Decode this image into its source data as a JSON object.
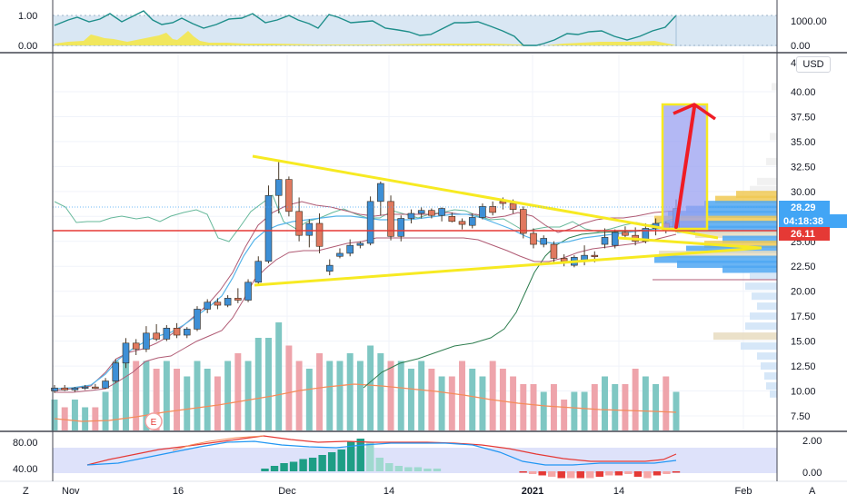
{
  "chart_data": {
    "type": "candlestick",
    "currency": "USD",
    "price_axis": {
      "ticks": [
        "40.00",
        "37.50",
        "35.00",
        "32.50",
        "30.00",
        "27.50",
        "25.00",
        "22.50",
        "20.00",
        "17.50",
        "15.00",
        "12.50",
        "10.00",
        "7.50"
      ],
      "top_partial": "4"
    },
    "time_axis": [
      "Nov",
      "16",
      "Dec",
      "14",
      "2021",
      "14",
      "Feb"
    ],
    "top_pane": {
      "left_ticks": [
        "1.00",
        "0.00"
      ],
      "right_ticks": [
        "1000.00",
        "0.00"
      ]
    },
    "bottom_pane": {
      "left_ticks": [
        "80.00",
        "40.00"
      ],
      "right_ticks": [
        "2.00",
        "0.00"
      ]
    },
    "badges": {
      "current_price": "28.29",
      "countdown": "04:18:38",
      "line_price": "26.11"
    },
    "earnings_marker": "E",
    "corner_left": "Z",
    "corner_right": "A",
    "candles": [
      {
        "o": 10.0,
        "h": 10.6,
        "l": 9.8,
        "c": 10.3
      },
      {
        "o": 10.3,
        "h": 10.6,
        "l": 10.0,
        "c": 10.1
      },
      {
        "o": 10.1,
        "h": 10.4,
        "l": 9.9,
        "c": 10.3
      },
      {
        "o": 10.3,
        "h": 10.6,
        "l": 10.1,
        "c": 10.4
      },
      {
        "o": 10.4,
        "h": 10.7,
        "l": 10.2,
        "c": 10.3
      },
      {
        "o": 10.3,
        "h": 11.3,
        "l": 10.2,
        "c": 11.0
      },
      {
        "o": 11.0,
        "h": 13.2,
        "l": 10.8,
        "c": 12.8
      },
      {
        "o": 12.8,
        "h": 15.3,
        "l": 12.3,
        "c": 14.8
      },
      {
        "o": 14.8,
        "h": 15.2,
        "l": 13.6,
        "c": 14.2
      },
      {
        "o": 14.2,
        "h": 16.5,
        "l": 13.9,
        "c": 15.8
      },
      {
        "o": 15.8,
        "h": 16.7,
        "l": 15.0,
        "c": 15.2
      },
      {
        "o": 15.2,
        "h": 16.6,
        "l": 15.0,
        "c": 16.3
      },
      {
        "o": 16.3,
        "h": 16.8,
        "l": 15.3,
        "c": 15.6
      },
      {
        "o": 15.6,
        "h": 16.4,
        "l": 15.3,
        "c": 16.2
      },
      {
        "o": 16.2,
        "h": 18.5,
        "l": 16.0,
        "c": 18.2
      },
      {
        "o": 18.2,
        "h": 19.2,
        "l": 17.8,
        "c": 18.9
      },
      {
        "o": 18.9,
        "h": 19.3,
        "l": 18.2,
        "c": 18.6
      },
      {
        "o": 18.6,
        "h": 19.6,
        "l": 18.4,
        "c": 19.3
      },
      {
        "o": 19.3,
        "h": 20.3,
        "l": 18.8,
        "c": 19.1
      },
      {
        "o": 19.1,
        "h": 21.2,
        "l": 18.9,
        "c": 20.9
      },
      {
        "o": 20.9,
        "h": 23.5,
        "l": 20.6,
        "c": 23.0
      },
      {
        "o": 23.0,
        "h": 30.6,
        "l": 22.8,
        "c": 29.6
      },
      {
        "o": 29.6,
        "h": 33.2,
        "l": 27.8,
        "c": 31.2
      },
      {
        "o": 31.2,
        "h": 31.5,
        "l": 27.5,
        "c": 28.0
      },
      {
        "o": 28.0,
        "h": 29.4,
        "l": 25.0,
        "c": 25.6
      },
      {
        "o": 25.6,
        "h": 27.2,
        "l": 24.4,
        "c": 26.8
      },
      {
        "o": 26.8,
        "h": 27.8,
        "l": 23.8,
        "c": 24.5
      },
      {
        "o": 22.0,
        "h": 23.2,
        "l": 21.6,
        "c": 22.6
      },
      {
        "o": 23.5,
        "h": 24.3,
        "l": 23.3,
        "c": 23.8
      },
      {
        "o": 23.8,
        "h": 25.2,
        "l": 23.5,
        "c": 24.6
      },
      {
        "o": 24.6,
        "h": 25.0,
        "l": 24.3,
        "c": 24.8
      },
      {
        "o": 24.8,
        "h": 29.5,
        "l": 24.6,
        "c": 29.0
      },
      {
        "o": 29.0,
        "h": 31.0,
        "l": 27.6,
        "c": 30.8
      },
      {
        "o": 29.0,
        "h": 29.6,
        "l": 25.1,
        "c": 25.5
      },
      {
        "o": 25.5,
        "h": 27.6,
        "l": 25.0,
        "c": 27.3
      },
      {
        "o": 27.3,
        "h": 28.2,
        "l": 26.8,
        "c": 27.8
      },
      {
        "o": 27.8,
        "h": 28.4,
        "l": 27.3,
        "c": 28.1
      },
      {
        "o": 28.1,
        "h": 28.3,
        "l": 27.3,
        "c": 27.6
      },
      {
        "o": 27.6,
        "h": 28.4,
        "l": 27.0,
        "c": 28.3
      },
      {
        "o": 27.5,
        "h": 27.9,
        "l": 26.9,
        "c": 27.0
      },
      {
        "o": 27.0,
        "h": 27.3,
        "l": 26.2,
        "c": 26.7
      },
      {
        "o": 26.6,
        "h": 27.8,
        "l": 26.3,
        "c": 27.4
      },
      {
        "o": 27.4,
        "h": 28.8,
        "l": 27.2,
        "c": 28.5
      },
      {
        "o": 28.5,
        "h": 29.0,
        "l": 27.6,
        "c": 27.9
      },
      {
        "o": 29.0,
        "h": 29.4,
        "l": 28.2,
        "c": 28.8
      },
      {
        "o": 28.8,
        "h": 29.2,
        "l": 27.8,
        "c": 28.2
      },
      {
        "o": 28.2,
        "h": 28.5,
        "l": 25.3,
        "c": 25.8
      },
      {
        "o": 25.8,
        "h": 26.3,
        "l": 24.3,
        "c": 24.7
      },
      {
        "o": 24.7,
        "h": 25.6,
        "l": 24.4,
        "c": 25.3
      },
      {
        "o": 24.7,
        "h": 25.0,
        "l": 22.9,
        "c": 23.3
      },
      {
        "o": 23.3,
        "h": 23.7,
        "l": 22.5,
        "c": 23.0
      },
      {
        "o": 22.6,
        "h": 23.6,
        "l": 22.4,
        "c": 23.4
      },
      {
        "o": 23.0,
        "h": 24.6,
        "l": 22.6,
        "c": 23.6
      },
      {
        "o": 23.6,
        "h": 24.0,
        "l": 22.9,
        "c": 23.5
      },
      {
        "o": 24.7,
        "h": 26.3,
        "l": 24.3,
        "c": 25.4
      },
      {
        "o": 24.6,
        "h": 26.2,
        "l": 24.3,
        "c": 25.9
      },
      {
        "o": 25.9,
        "h": 26.5,
        "l": 25.3,
        "c": 25.6
      },
      {
        "o": 25.6,
        "h": 26.4,
        "l": 24.6,
        "c": 25.0
      },
      {
        "o": 25.0,
        "h": 26.8,
        "l": 24.8,
        "c": 26.3
      },
      {
        "o": 26.3,
        "h": 27.3,
        "l": 25.6,
        "c": 26.8
      },
      {
        "o": 26.8,
        "h": 27.0,
        "l": 25.8,
        "c": 26.1
      },
      {
        "o": 26.1,
        "h": 29.2,
        "l": 25.9,
        "c": 28.29
      }
    ],
    "volume": [
      4,
      3,
      4,
      3,
      3,
      5,
      9,
      10,
      9,
      9,
      8,
      9,
      8,
      7,
      9,
      8,
      7,
      9,
      10,
      9,
      12,
      12,
      14,
      11,
      9,
      8,
      10,
      9,
      9,
      10,
      9,
      11,
      10,
      9,
      9,
      8,
      9,
      8,
      7,
      7,
      9,
      8,
      7,
      9,
      8,
      7,
      6,
      6,
      5,
      6,
      4,
      5,
      5,
      6,
      7,
      6,
      6,
      8,
      7,
      6,
      7,
      5
    ]
  }
}
